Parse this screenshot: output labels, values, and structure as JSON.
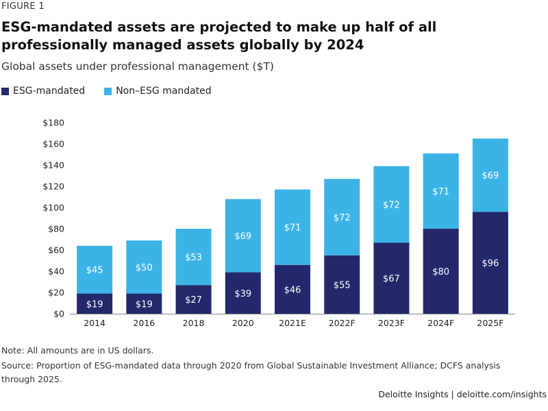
{
  "figure_label": "FIGURE 1",
  "title": "ESG-mandated assets are projected to make up half of all professionally managed assets globally by 2024",
  "subtitle": "Global assets under professional management ($T)",
  "note": "Note: All amounts are in US dollars.",
  "source": "Source: Proportion of ESG-mandated data through 2020 from Global Sustainable Investment Alliance; DCFS analysis through 2025.",
  "footer": "Deloitte Insights | deloitte.com/insights",
  "colors": {
    "esg": "#23286b",
    "non_esg": "#3cb3e6",
    "axis": "#888888"
  },
  "chart_data": {
    "type": "bar",
    "stacked": true,
    "title": "Global assets under professional management ($T)",
    "categories": [
      "2014",
      "2016",
      "2018",
      "2020",
      "2021E",
      "2022F",
      "2023F",
      "2024F",
      "2025F"
    ],
    "series": [
      {
        "name": "ESG-mandated",
        "values": [
          19,
          19,
          27,
          39,
          46,
          55,
          67,
          80,
          96
        ],
        "labels": [
          "$19",
          "$19",
          "$27",
          "$39",
          "$46",
          "$55",
          "$67",
          "$80",
          "$96"
        ]
      },
      {
        "name": "Non–ESG mandated",
        "values": [
          45,
          50,
          53,
          69,
          71,
          72,
          72,
          71,
          69
        ],
        "labels": [
          "$45",
          "$50",
          "$53",
          "$69",
          "$71",
          "$72",
          "$72",
          "$71",
          "$69"
        ]
      }
    ],
    "ylim": [
      0,
      180
    ],
    "yticks": [
      0,
      20,
      40,
      60,
      80,
      100,
      120,
      140,
      160,
      180
    ],
    "ytick_labels": [
      "$0",
      "$20",
      "$40",
      "$60",
      "$80",
      "$100",
      "$120",
      "$140",
      "$160",
      "$180"
    ],
    "grid": false,
    "legend_position": "top-left"
  }
}
